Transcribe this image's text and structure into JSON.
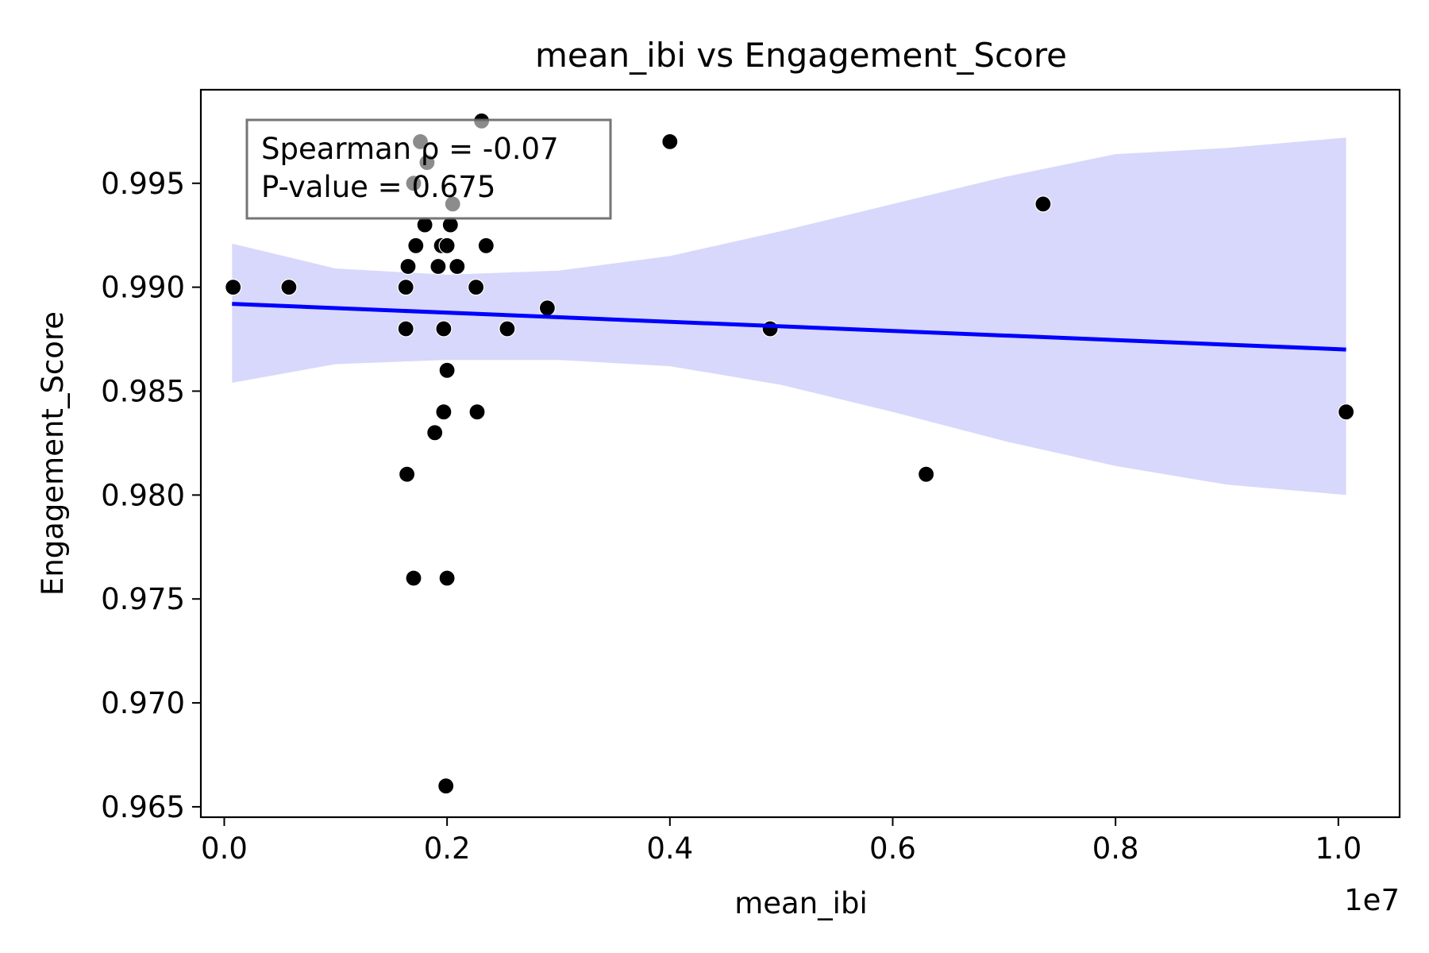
{
  "chart_data": {
    "type": "scatter",
    "title": "mean_ibi vs Engagement_Score",
    "xlabel": "mean_ibi",
    "ylabel": "Engagement_Score",
    "x_offset_label": "1e7",
    "xlim": [
      -0.021,
      1.055
    ],
    "ylim": [
      0.9645,
      0.9995
    ],
    "x_ticks": [
      0.0,
      0.2,
      0.4,
      0.6,
      0.8,
      1.0
    ],
    "x_tick_labels": [
      "0.0",
      "0.2",
      "0.4",
      "0.6",
      "0.8",
      "1.0"
    ],
    "y_ticks": [
      0.965,
      0.97,
      0.975,
      0.98,
      0.985,
      0.99,
      0.995
    ],
    "y_tick_labels": [
      "0.965",
      "0.970",
      "0.975",
      "0.980",
      "0.985",
      "0.990",
      "0.995"
    ],
    "grid": false,
    "annotation": {
      "lines": [
        "Spearman ρ = -0.07",
        "P-value = 0.675"
      ],
      "placement": "top-left"
    },
    "colors": {
      "points": "#000000",
      "regression_line": "#0000ff",
      "confidence_band": "#d8d8fc",
      "annotation_border": "#666666"
    },
    "series": [
      {
        "kind": "points",
        "x": [
          0.008,
          0.058,
          0.163,
          0.165,
          0.163,
          0.164,
          0.172,
          0.176,
          0.18,
          0.182,
          0.17,
          0.17,
          0.189,
          0.192,
          0.195,
          0.197,
          0.197,
          0.199,
          0.2,
          0.2,
          0.2,
          0.203,
          0.205,
          0.209,
          0.226,
          0.227,
          0.231,
          0.235,
          0.254,
          0.29,
          0.4,
          0.49,
          0.63,
          0.735,
          1.007
        ],
        "y": [
          0.99,
          0.99,
          0.99,
          0.991,
          0.988,
          0.981,
          0.992,
          0.997,
          0.993,
          0.996,
          0.995,
          0.976,
          0.983,
          0.991,
          0.992,
          0.988,
          0.984,
          0.966,
          0.986,
          0.976,
          0.992,
          0.993,
          0.994,
          0.991,
          0.99,
          0.984,
          0.998,
          0.992,
          0.988,
          0.989,
          0.997,
          0.988,
          0.981,
          0.994,
          0.984
        ]
      },
      {
        "kind": "regression_line",
        "x": [
          0.007,
          1.007
        ],
        "y": [
          0.9892,
          0.987
        ]
      },
      {
        "kind": "confidence_band",
        "x": [
          0.007,
          0.1,
          0.2,
          0.3,
          0.4,
          0.5,
          0.6,
          0.7,
          0.8,
          0.9,
          1.007
        ],
        "upper": [
          0.9921,
          0.9909,
          0.9906,
          0.9908,
          0.9915,
          0.9927,
          0.994,
          0.9953,
          0.9964,
          0.9967,
          0.9972
        ],
        "lower": [
          0.9854,
          0.9863,
          0.9865,
          0.9865,
          0.9862,
          0.9853,
          0.984,
          0.9826,
          0.9814,
          0.9805,
          0.98
        ]
      }
    ]
  }
}
